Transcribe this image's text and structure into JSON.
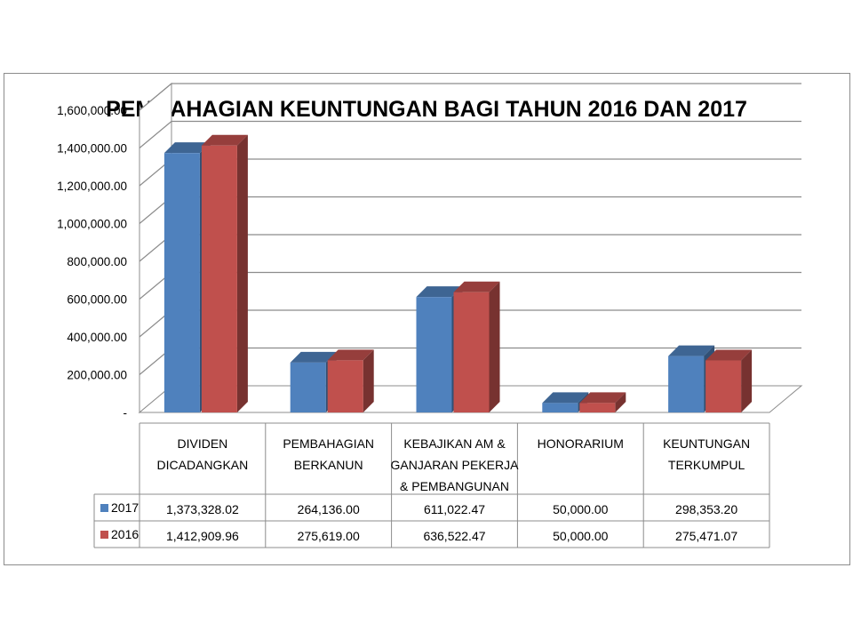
{
  "chart_data": {
    "type": "bar",
    "title": "PEMBAHAGIAN KEUNTUNGAN BAGI TAHUN 2016 DAN 2017",
    "categories": [
      [
        "DIVIDEN",
        "DICADANGKAN"
      ],
      [
        "PEMBAHAGIAN",
        "BERKANUN"
      ],
      [
        "KEBAJIKAN AM &",
        "GANJARAN PEKERJA",
        "& PEMBANGUNAN"
      ],
      [
        "HONORARIUM"
      ],
      [
        "KEUNTUNGAN",
        "TERKUMPUL"
      ]
    ],
    "series": [
      {
        "name": "2017",
        "color": "#4F81BD",
        "values": [
          1373328.02,
          264136.0,
          611022.47,
          50000.0,
          298353.2
        ],
        "labels": [
          "1,373,328.02",
          "264,136.00",
          "611,022.47",
          "50,000.00",
          "298,353.20"
        ]
      },
      {
        "name": "2016",
        "color": "#C0504D",
        "values": [
          1412909.96,
          275619.0,
          636522.47,
          50000.0,
          275471.07
        ],
        "labels": [
          "1,412,909.96",
          "275,619.00",
          "636,522.47",
          "50,000.00",
          "275,471.07"
        ]
      }
    ],
    "ylim": [
      0,
      1600000
    ],
    "yticks": [
      {
        "value": 0,
        "label": "-"
      },
      {
        "value": 200000,
        "label": "200,000.00"
      },
      {
        "value": 400000,
        "label": "400,000.00"
      },
      {
        "value": 600000,
        "label": "600,000.00"
      },
      {
        "value": 800000,
        "label": "800,000.00"
      },
      {
        "value": 1000000,
        "label": "1,000,000.00"
      },
      {
        "value": 1200000,
        "label": "1,200,000.00"
      },
      {
        "value": 1400000,
        "label": "1,400,000.00"
      },
      {
        "value": 1600000,
        "label": "1,600,000.00"
      }
    ],
    "grid": true,
    "legend": "data-table",
    "style": "3d-clustered-column"
  }
}
